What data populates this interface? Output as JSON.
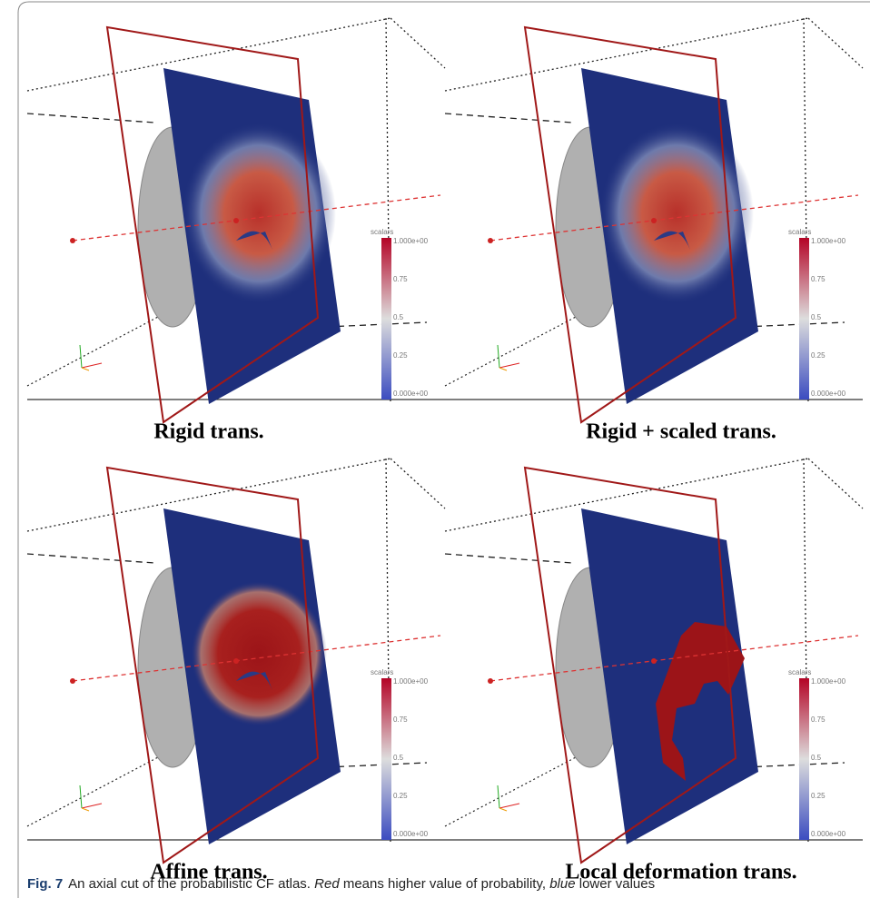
{
  "panels": [
    {
      "label": "Rigid trans."
    },
    {
      "label": "Rigid + scaled trans."
    },
    {
      "label": "Affine trans."
    },
    {
      "label": "Local deformation trans."
    }
  ],
  "colorbar": {
    "title": "scalars",
    "ticks": [
      "1.000e+00",
      "0.75",
      "0.5",
      "0.25",
      "0.000e+00"
    ]
  },
  "caption": {
    "label": "Fig. 7",
    "parts": [
      "An axial cut of the probabilistic CF atlas.",
      "Red",
      "means higher value of probability,",
      "blue",
      "lower values"
    ]
  }
}
